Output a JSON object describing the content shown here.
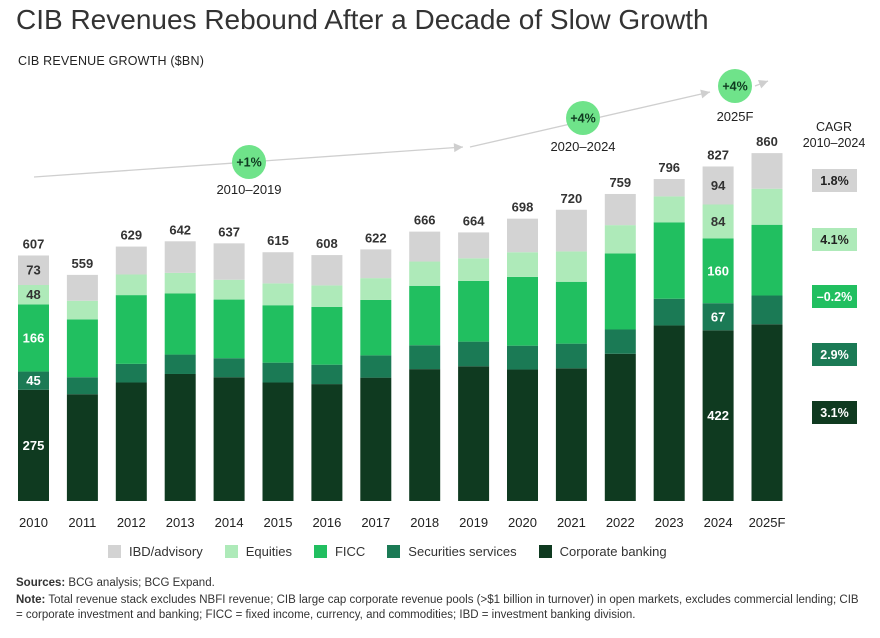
{
  "title": "CIB Revenues Rebound After a Decade of Slow Growth",
  "subtitle": "CIB REVENUE GROWTH ($BN)",
  "sources_label": "Sources:",
  "sources_text": "BCG analysis; BCG Expand.",
  "note_label": "Note:",
  "note_text": "Total revenue stack excludes NBFI revenue; CIB large cap corporate revenue pools (>$1 billion in turnover) in open markets, excludes commercial lending; CIB = corporate investment and banking; FICC = fixed income, currency, and commodities; IBD = investment banking division.",
  "cagr_header": [
    "CAGR",
    "2010–2024"
  ],
  "colors": {
    "IBD/advisory": "#d3d3d3",
    "Equities": "#aeeab9",
    "FICC": "#21bf60",
    "Securities services": "#1b7a55",
    "Corporate banking": "#0f3a20"
  },
  "chart_data": {
    "type": "bar",
    "stacked": true,
    "categories": [
      "2010",
      "2011",
      "2012",
      "2013",
      "2014",
      "2015",
      "2016",
      "2017",
      "2018",
      "2019",
      "2020",
      "2021",
      "2022",
      "2023",
      "2024",
      "2025F"
    ],
    "totals": [
      607,
      559,
      629,
      642,
      637,
      615,
      608,
      622,
      666,
      664,
      698,
      720,
      759,
      796,
      827,
      860
    ],
    "series": [
      {
        "name": "Corporate banking",
        "values": [
          275,
          264,
          293,
          314,
          306,
          293,
          289,
          305,
          326,
          333,
          325,
          328,
          364,
          434,
          422,
          437
        ]
      },
      {
        "name": "Securities services",
        "values": [
          45,
          42,
          46,
          48,
          47,
          49,
          48,
          55,
          59,
          61,
          59,
          61,
          60,
          66,
          67,
          71
        ]
      },
      {
        "name": "FICC",
        "values": [
          166,
          143,
          170,
          151,
          145,
          142,
          143,
          137,
          147,
          150,
          170,
          153,
          188,
          189,
          160,
          175
        ]
      },
      {
        "name": "Equities",
        "values": [
          48,
          46,
          51,
          51,
          49,
          54,
          53,
          54,
          60,
          56,
          61,
          75,
          70,
          64,
          84,
          89
        ]
      },
      {
        "name": "IBD/advisory",
        "values": [
          73,
          64,
          69,
          78,
          90,
          77,
          75,
          71,
          74,
          64,
          83,
          103,
          77,
          43,
          94,
          88
        ]
      }
    ],
    "data_labels": [
      {
        "category": "2010",
        "series": "Corporate banking",
        "text": "275"
      },
      {
        "category": "2010",
        "series": "Securities services",
        "text": "45"
      },
      {
        "category": "2010",
        "series": "FICC",
        "text": "166"
      },
      {
        "category": "2010",
        "series": "Equities",
        "text": "48"
      },
      {
        "category": "2010",
        "series": "IBD/advisory",
        "text": "73"
      },
      {
        "category": "2024",
        "series": "Corporate banking",
        "text": "422"
      },
      {
        "category": "2024",
        "series": "Securities services",
        "text": "67"
      },
      {
        "category": "2024",
        "series": "FICC",
        "text": "160"
      },
      {
        "category": "2024",
        "series": "Equities",
        "text": "84"
      },
      {
        "category": "2024",
        "series": "IBD/advisory",
        "text": "94"
      }
    ],
    "growth_annotations": [
      {
        "label": "+1%",
        "period": "2010–2019"
      },
      {
        "label": "+4%",
        "period": "2020–2024"
      },
      {
        "label": "+4%",
        "period": "2025F"
      }
    ],
    "cagr": [
      {
        "series": "IBD/advisory",
        "value": "1.8%"
      },
      {
        "series": "Equities",
        "value": "4.1%"
      },
      {
        "series": "FICC",
        "value": "–0.2%"
      },
      {
        "series": "Securities services",
        "value": "2.9%"
      },
      {
        "series": "Corporate banking",
        "value": "3.1%"
      }
    ],
    "legend_order": [
      "IBD/advisory",
      "Equities",
      "FICC",
      "Securities services",
      "Corporate banking"
    ],
    "legend_position": "bottom",
    "grid": false
  }
}
